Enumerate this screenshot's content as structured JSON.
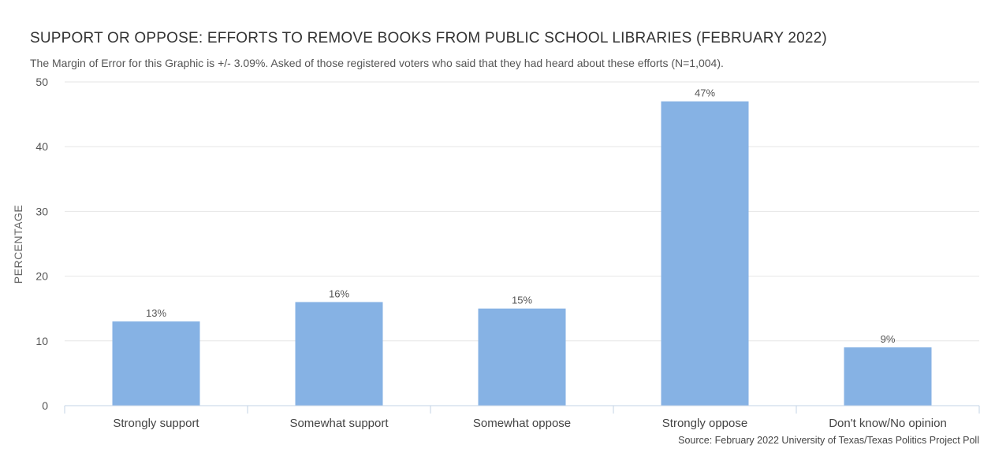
{
  "chart_data": {
    "type": "bar",
    "title": "SUPPORT OR OPPOSE: EFFORTS TO REMOVE BOOKS FROM PUBLIC SCHOOL LIBRARIES (FEBRUARY 2022)",
    "subtitle": "The Margin of Error for this Graphic is +/- 3.09%. Asked of those registered voters who said that they had heard about these efforts (N=1,004).",
    "ylabel": "PERCENTAGE",
    "xlabel": "",
    "categories": [
      "Strongly support",
      "Somewhat support",
      "Somewhat oppose",
      "Strongly oppose",
      "Don't know/No opinion"
    ],
    "values": [
      13,
      16,
      15,
      47,
      9
    ],
    "data_labels": [
      "13%",
      "16%",
      "15%",
      "47%",
      "9%"
    ],
    "ylim": [
      0,
      50
    ],
    "yticks": [
      0,
      10,
      20,
      30,
      40,
      50
    ],
    "grid": true,
    "bar_color": "#86b2e4",
    "source": "Source: February 2022 University of Texas/Texas Politics Project Poll"
  }
}
